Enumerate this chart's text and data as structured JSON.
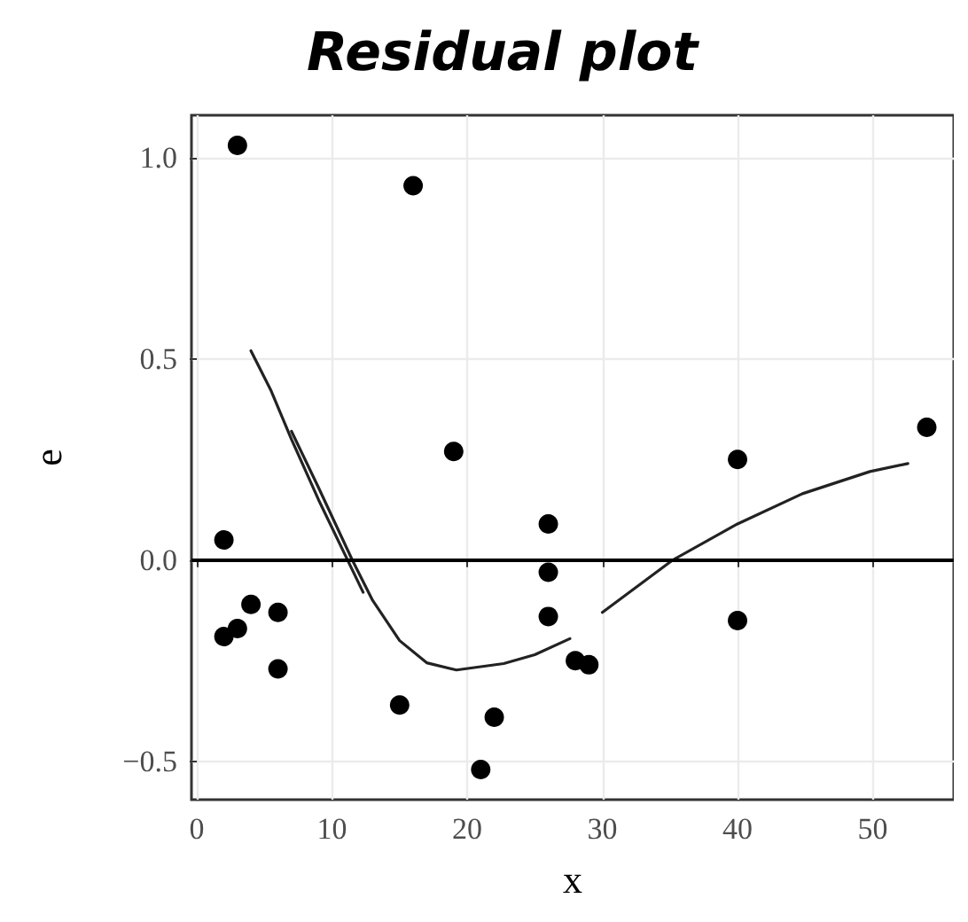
{
  "chart_data": {
    "type": "scatter",
    "title": "Residual plot",
    "xlabel": "x",
    "ylabel": "e",
    "marker": "circle",
    "grid": true,
    "xlim": [
      -0.4,
      56
    ],
    "xticks": [
      0,
      10,
      20,
      30,
      40,
      50
    ],
    "ylim": [
      -0.595,
      1.105
    ],
    "yticks": [
      {
        "value": -0.5,
        "label": "−0.5"
      },
      {
        "value": 0,
        "label": "0.0"
      },
      {
        "value": 0.5,
        "label": "0.5"
      },
      {
        "value": 1,
        "label": "1.0"
      }
    ],
    "ref_lines": [
      {
        "axis": "y",
        "value": 0,
        "color": "#000000",
        "line_style": "solid"
      }
    ],
    "series": [
      {
        "color": "#000000",
        "x": [
          2,
          2,
          3,
          3,
          4,
          6,
          6,
          15,
          16,
          19,
          21,
          22,
          26,
          26,
          26,
          28,
          29,
          40,
          40,
          54
        ],
        "values": [
          0.05,
          -0.19,
          1.03,
          -0.17,
          -0.11,
          -0.13,
          -0.27,
          -0.36,
          0.93,
          0.27,
          -0.52,
          -0.39,
          0.09,
          -0.03,
          -0.14,
          -0.25,
          -0.26,
          0.25,
          -0.15,
          0.33
        ]
      },
      {
        "type": "line",
        "marker": "none",
        "line_style": "solid",
        "color": "#222222",
        "x": [
          4,
          5.5,
          7,
          9,
          12.3
        ],
        "values": [
          0.52,
          0.42,
          0.3,
          0.15,
          -0.08
        ]
      },
      {
        "type": "line",
        "marker": "none",
        "line_style": "solid",
        "color": "#222222",
        "x": [
          7,
          9,
          11.5,
          13,
          15,
          17,
          19.2,
          22.7,
          25,
          27.6
        ],
        "values": [
          0.32,
          0.18,
          0,
          -0.1,
          -0.2,
          -0.255,
          -0.273,
          -0.257,
          -0.235,
          -0.195
        ]
      },
      {
        "type": "line",
        "marker": "none",
        "line_style": "solid",
        "color": "#222222",
        "x": [
          30,
          35.2,
          40,
          44.8,
          49.8,
          52.6
        ],
        "values": [
          -0.13,
          0,
          0.09,
          0.165,
          0.22,
          0.24
        ]
      }
    ]
  }
}
